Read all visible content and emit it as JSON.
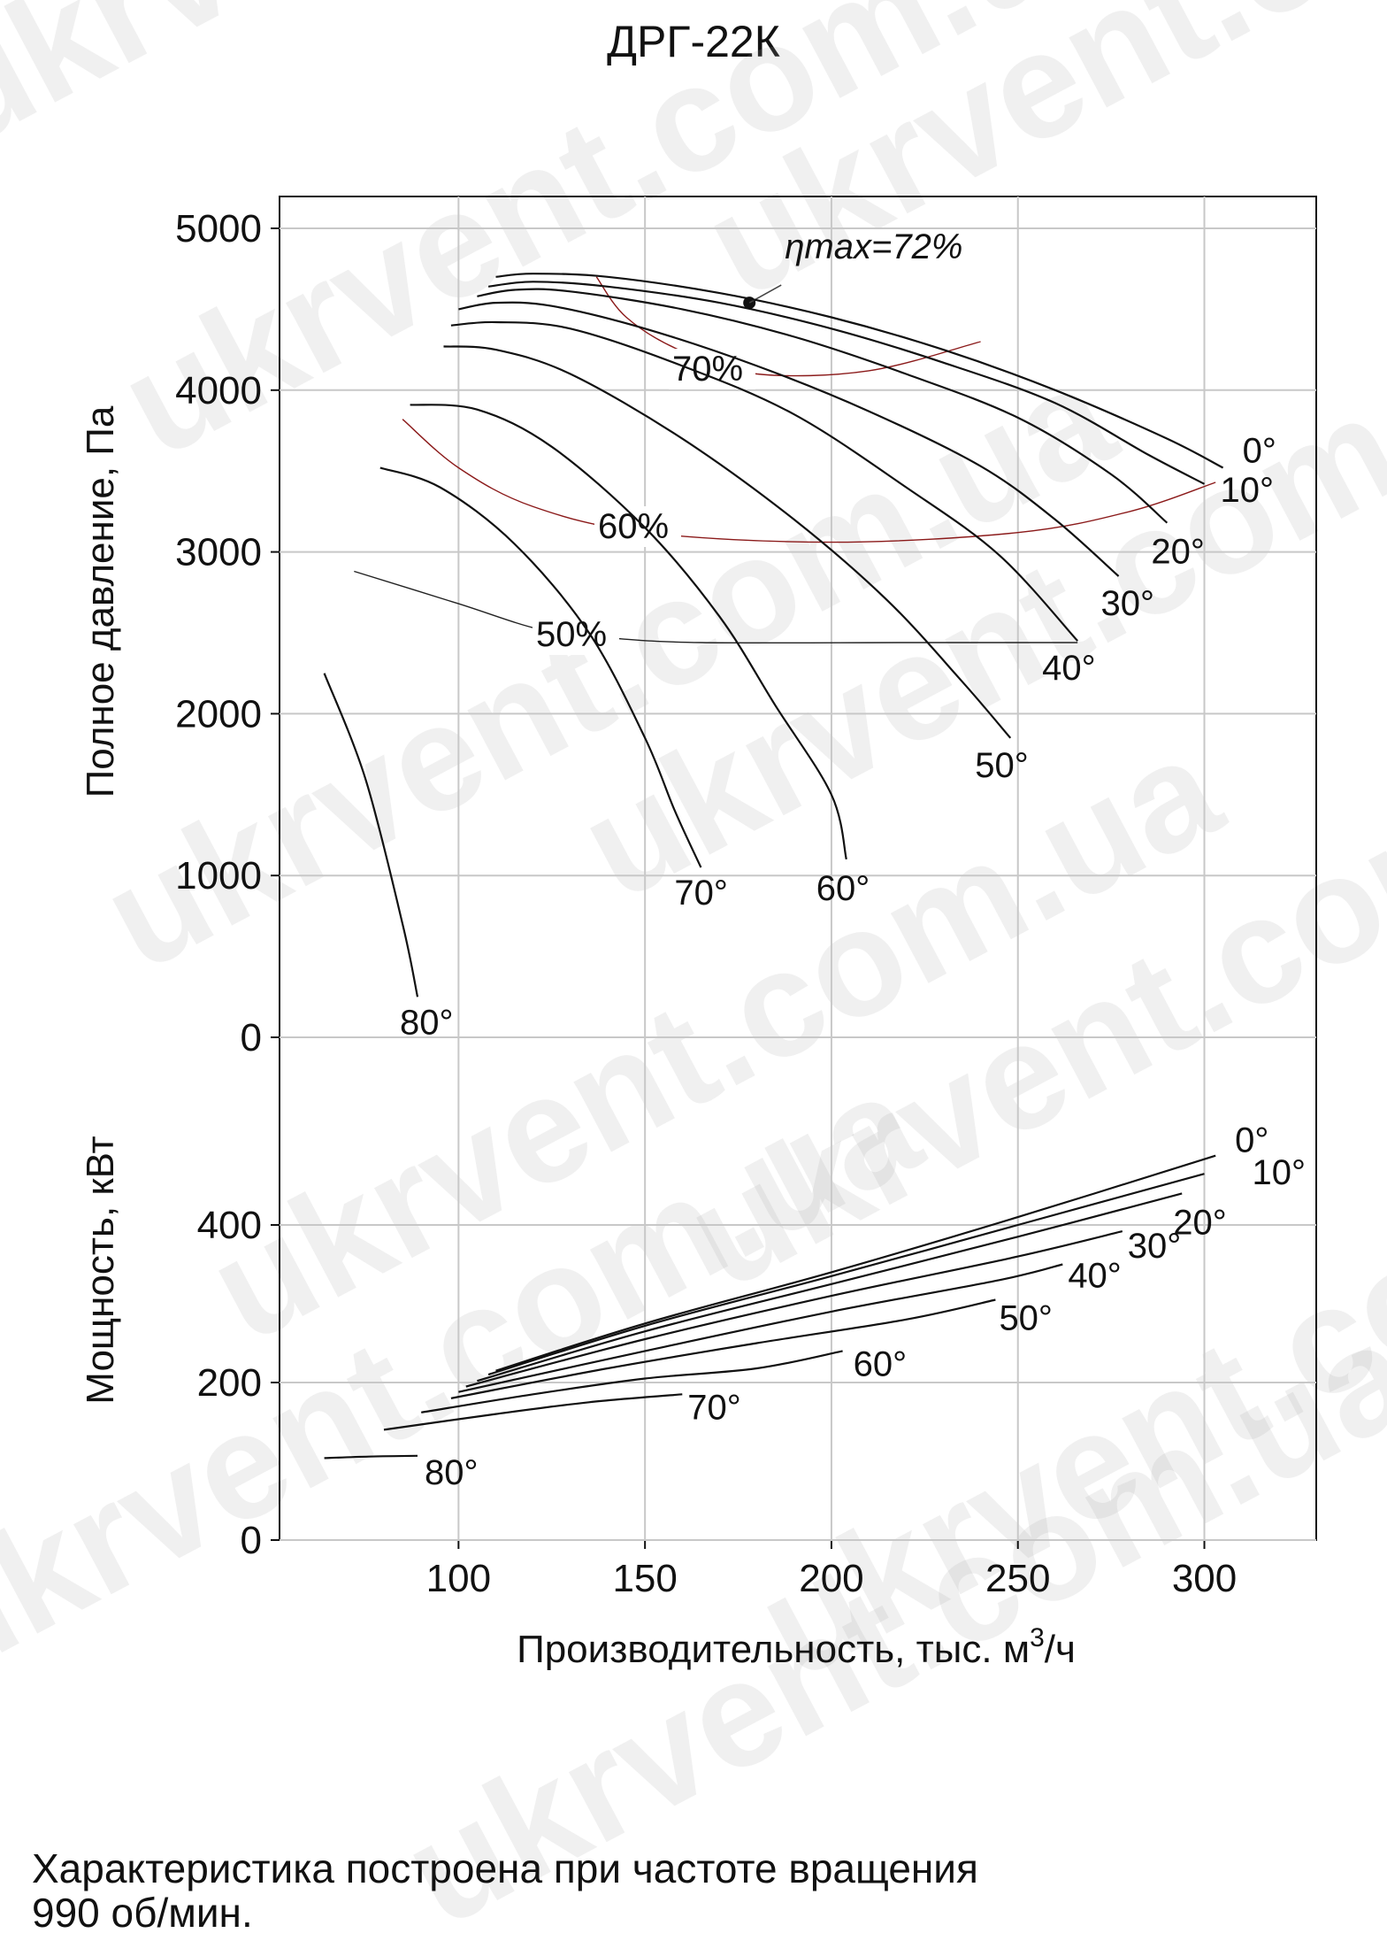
{
  "title": "ДРГ-22К",
  "footnote_line1": "Характеристика построена при частоте вращения",
  "footnote_line2": "990 об/мин.",
  "watermark": "ukrvent.com.ua",
  "colors": {
    "curves": "#111111",
    "efficiency": "#8b1a1a",
    "grid": "#c8c8c8",
    "axes": "#111111"
  },
  "chart_data": [
    {
      "type": "line",
      "panel": "pressure",
      "ylabel": "Полное давление, Па",
      "ylim": [
        0,
        5000
      ],
      "yticks": [
        0,
        1000,
        2000,
        3000,
        4000,
        5000
      ],
      "xlim": [
        52,
        330
      ],
      "grid": true,
      "series": [
        {
          "name": "0°",
          "points": [
            [
              110,
              4700
            ],
            [
              120,
              4720
            ],
            [
              140,
              4700
            ],
            [
              170,
              4600
            ],
            [
              200,
              4450
            ],
            [
              230,
              4250
            ],
            [
              260,
              4000
            ],
            [
              290,
              3700
            ],
            [
              305,
              3520
            ]
          ]
        },
        {
          "name": "10°",
          "points": [
            [
              108,
              4640
            ],
            [
              120,
              4670
            ],
            [
              140,
              4640
            ],
            [
              170,
              4540
            ],
            [
              200,
              4380
            ],
            [
              230,
              4170
            ],
            [
              260,
              3920
            ],
            [
              285,
              3600
            ],
            [
              300,
              3420
            ]
          ]
        },
        {
          "name": "20°",
          "points": [
            [
              105,
              4580
            ],
            [
              115,
              4620
            ],
            [
              130,
              4610
            ],
            [
              160,
              4500
            ],
            [
              190,
              4330
            ],
            [
              220,
              4100
            ],
            [
              250,
              3830
            ],
            [
              275,
              3480
            ],
            [
              290,
              3180
            ]
          ]
        },
        {
          "name": "30°",
          "points": [
            [
              100,
              4500
            ],
            [
              110,
              4540
            ],
            [
              125,
              4520
            ],
            [
              150,
              4380
            ],
            [
              180,
              4150
            ],
            [
              210,
              3870
            ],
            [
              240,
              3530
            ],
            [
              260,
              3200
            ],
            [
              277,
              2850
            ]
          ]
        },
        {
          "name": "40°",
          "points": [
            [
              98,
              4400
            ],
            [
              110,
              4420
            ],
            [
              130,
              4380
            ],
            [
              160,
              4150
            ],
            [
              190,
              3850
            ],
            [
              220,
              3400
            ],
            [
              245,
              2980
            ],
            [
              266,
              2450
            ]
          ]
        },
        {
          "name": "50°",
          "points": [
            [
              96,
              4270
            ],
            [
              110,
              4250
            ],
            [
              130,
              4100
            ],
            [
              160,
              3700
            ],
            [
              190,
              3200
            ],
            [
              215,
              2700
            ],
            [
              235,
              2200
            ],
            [
              248,
              1850
            ]
          ]
        },
        {
          "name": "60°",
          "points": [
            [
              87,
              3910
            ],
            [
              105,
              3880
            ],
            [
              125,
              3650
            ],
            [
              150,
              3150
            ],
            [
              170,
              2600
            ],
            [
              185,
              2050
            ],
            [
              200,
              1500
            ],
            [
              204,
              1100
            ]
          ]
        },
        {
          "name": "70°",
          "points": [
            [
              79,
              3520
            ],
            [
              95,
              3400
            ],
            [
              115,
              3050
            ],
            [
              135,
              2500
            ],
            [
              150,
              1850
            ],
            [
              158,
              1400
            ],
            [
              165,
              1050
            ]
          ]
        },
        {
          "name": "80°",
          "points": [
            [
              64,
              2250
            ],
            [
              75,
              1600
            ],
            [
              85,
              700
            ],
            [
              89,
              250
            ]
          ]
        }
      ],
      "efficiency_curves": [
        {
          "label": "ηmax=72%",
          "point": [
            178,
            4540
          ]
        },
        {
          "label": "70%",
          "points": [
            [
              137,
              4700
            ],
            [
              145,
              4450
            ],
            [
              160,
              4240
            ],
            [
              180,
              4100
            ],
            [
              210,
              4120
            ],
            [
              240,
              4300
            ]
          ]
        },
        {
          "label": "60%",
          "points": [
            [
              85,
              3820
            ],
            [
              100,
              3520
            ],
            [
              120,
              3280
            ],
            [
              150,
              3120
            ],
            [
              200,
              3060
            ],
            [
              250,
              3120
            ],
            [
              280,
              3250
            ],
            [
              303,
              3430
            ]
          ]
        },
        {
          "label": "50%",
          "points": [
            [
              72,
              2880
            ],
            [
              100,
              2680
            ],
            [
              122,
              2520
            ],
            [
              140,
              2470
            ],
            [
              165,
              2440
            ],
            [
              220,
              2440
            ],
            [
              266,
              2440
            ]
          ]
        }
      ]
    },
    {
      "type": "line",
      "panel": "power",
      "ylabel": "Мощность, кВт",
      "xlabel_prefix": "Производительность, тыс. м",
      "xlabel_sup": "3",
      "xlabel_suffix": "/ч",
      "ylim": [
        0,
        510
      ],
      "yticks": [
        0,
        200,
        400
      ],
      "xticks": [
        100,
        150,
        200,
        250,
        300
      ],
      "xlim": [
        52,
        330
      ],
      "grid": true,
      "series": [
        {
          "name": "0°",
          "points": [
            [
              110,
              215
            ],
            [
              150,
              275
            ],
            [
              200,
              340
            ],
            [
              250,
              410
            ],
            [
              303,
              488
            ]
          ]
        },
        {
          "name": "10°",
          "points": [
            [
              108,
              210
            ],
            [
              150,
              272
            ],
            [
              200,
              335
            ],
            [
              250,
              400
            ],
            [
              300,
              465
            ]
          ]
        },
        {
          "name": "20°",
          "points": [
            [
              105,
              202
            ],
            [
              150,
              265
            ],
            [
              200,
              325
            ],
            [
              250,
              385
            ],
            [
              294,
              440
            ]
          ]
        },
        {
          "name": "30°",
          "points": [
            [
              102,
              195
            ],
            [
              150,
              255
            ],
            [
              200,
              310
            ],
            [
              250,
              360
            ],
            [
              278,
              392
            ]
          ]
        },
        {
          "name": "40°",
          "points": [
            [
              100,
              188
            ],
            [
              150,
              240
            ],
            [
              200,
              290
            ],
            [
              245,
              330
            ],
            [
              262,
              350
            ]
          ]
        },
        {
          "name": "50°",
          "points": [
            [
              98,
              180
            ],
            [
              140,
              218
            ],
            [
              180,
              250
            ],
            [
              220,
              280
            ],
            [
              244,
              305
            ]
          ]
        },
        {
          "name": "60°",
          "points": [
            [
              90,
              162
            ],
            [
              120,
              185
            ],
            [
              150,
              205
            ],
            [
              180,
              218
            ],
            [
              203,
              240
            ]
          ]
        },
        {
          "name": "70°",
          "points": [
            [
              80,
              140
            ],
            [
              110,
              160
            ],
            [
              135,
              175
            ],
            [
              160,
              185
            ]
          ]
        },
        {
          "name": "80°",
          "points": [
            [
              64,
              104
            ],
            [
              76,
              106
            ],
            [
              89,
              107
            ]
          ]
        }
      ]
    }
  ],
  "curve_labels_pressure": [
    "0°",
    "10°",
    "20°",
    "30°",
    "40°",
    "50°",
    "60°",
    "70°",
    "80°"
  ],
  "curve_labels_power": [
    "0°",
    "10°",
    "20°",
    "30°",
    "40°",
    "50°",
    "60°",
    "70°",
    "80°"
  ]
}
